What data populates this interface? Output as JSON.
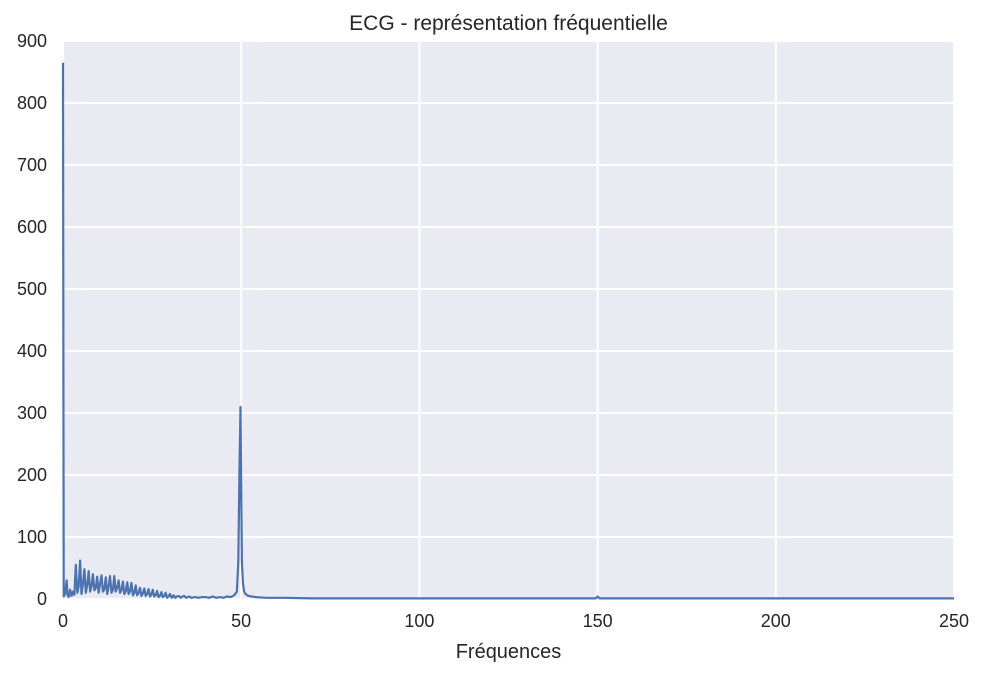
{
  "chart_data": {
    "type": "line",
    "title": "ECG - représentation fréquentielle",
    "xlabel": "Fréquences",
    "ylabel": "",
    "xlim": [
      0,
      250
    ],
    "ylim": [
      0,
      900
    ],
    "xticks": [
      "0",
      "50",
      "100",
      "150",
      "200",
      "250"
    ],
    "yticks": [
      "0",
      "100",
      "200",
      "300",
      "400",
      "500",
      "600",
      "700",
      "800",
      "900"
    ],
    "grid": true,
    "legend": "none",
    "background_color": "#eaeaf2",
    "grid_color": "#ffffff",
    "series": [
      {
        "color": "#4c72b0",
        "x": [
          0,
          0.2,
          0.6,
          1.0,
          1.3,
          1.6,
          2.0,
          2.4,
          2.8,
          3.2,
          3.6,
          4.0,
          4.4,
          4.8,
          5.2,
          5.6,
          6.0,
          6.4,
          6.8,
          7.2,
          7.6,
          8.0,
          8.4,
          8.8,
          9.2,
          9.6,
          10.0,
          10.4,
          10.8,
          11.2,
          11.6,
          12.0,
          12.4,
          12.8,
          13.2,
          13.6,
          14.0,
          14.4,
          14.8,
          15.2,
          15.6,
          16.0,
          16.4,
          16.8,
          17.2,
          17.6,
          18.0,
          18.4,
          18.8,
          19.2,
          19.6,
          20.0,
          20.4,
          20.8,
          21.2,
          21.6,
          22.0,
          22.4,
          22.8,
          23.2,
          23.6,
          24.0,
          24.4,
          24.8,
          25.2,
          25.6,
          26.0,
          26.4,
          26.8,
          27.2,
          27.6,
          28.0,
          28.4,
          28.8,
          29.2,
          29.6,
          30.0,
          30.5,
          31.0,
          31.5,
          32.0,
          32.5,
          33.0,
          33.5,
          34.0,
          34.5,
          35.0,
          35.5,
          36.0,
          37.0,
          38.0,
          39.0,
          40.0,
          41.0,
          42.0,
          43.0,
          44.0,
          45.0,
          46.0,
          47.0,
          48.0,
          48.8,
          49.2,
          49.5,
          49.8,
          50.0,
          50.2,
          50.5,
          50.8,
          51.2,
          52.0,
          54.0,
          57.0,
          62.0,
          70.0,
          80.0,
          100.0,
          120.0,
          140.0,
          149.5,
          150.0,
          150.5,
          160.0,
          180.0,
          200.0,
          220.0,
          240.0,
          250.0
        ],
        "y": [
          865,
          4,
          8,
          30,
          6,
          3,
          15,
          5,
          12,
          7,
          55,
          10,
          20,
          62,
          8,
          25,
          48,
          10,
          22,
          45,
          12,
          20,
          40,
          14,
          18,
          36,
          10,
          25,
          38,
          12,
          15,
          35,
          8,
          20,
          37,
          10,
          15,
          37,
          12,
          18,
          30,
          10,
          14,
          28,
          8,
          12,
          27,
          8,
          12,
          26,
          6,
          10,
          22,
          6,
          10,
          18,
          5,
          9,
          17,
          5,
          8,
          16,
          4,
          7,
          15,
          4,
          6,
          13,
          3,
          5,
          11,
          3,
          5,
          10,
          2,
          4,
          8,
          2,
          6,
          2,
          4,
          5,
          2,
          4,
          5,
          2,
          3,
          4,
          2,
          3,
          2,
          3,
          3,
          2,
          4,
          2,
          3,
          2,
          4,
          3,
          6,
          12,
          60,
          200,
          310,
          180,
          60,
          25,
          12,
          8,
          5,
          3,
          2,
          2,
          1,
          1,
          1,
          1,
          1,
          1,
          4,
          1,
          1,
          1,
          1,
          1,
          1,
          1
        ]
      }
    ]
  }
}
